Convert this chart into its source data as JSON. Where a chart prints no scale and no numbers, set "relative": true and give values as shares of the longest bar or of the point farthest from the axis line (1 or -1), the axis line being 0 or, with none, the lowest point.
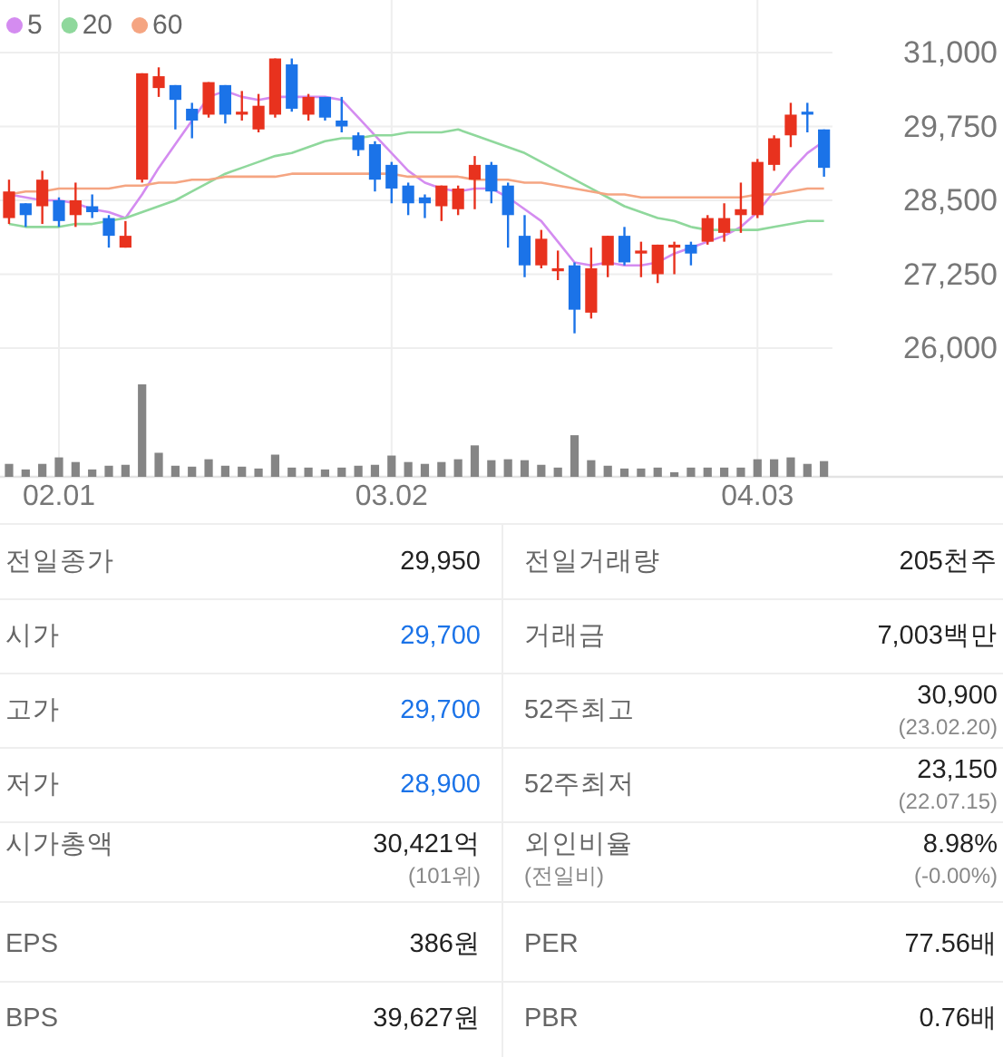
{
  "chart_data": [
    {
      "type": "candlestick",
      "categories": [
        null,
        null,
        null,
        "02.01",
        null,
        null,
        null,
        null,
        null,
        null,
        null,
        null,
        null,
        null,
        null,
        null,
        null,
        null,
        null,
        null,
        null,
        null,
        null,
        "03.02",
        null,
        null,
        null,
        null,
        null,
        null,
        null,
        null,
        null,
        null,
        null,
        null,
        null,
        null,
        null,
        null,
        null,
        null,
        null,
        null,
        null,
        "04.03",
        null,
        null,
        null,
        null
      ],
      "ohlc": [
        [
          28200,
          28850,
          28100,
          28650
        ],
        [
          28450,
          28450,
          28050,
          28250
        ],
        [
          28400,
          29000,
          28100,
          28850
        ],
        [
          28500,
          28550,
          28050,
          28150
        ],
        [
          28250,
          28800,
          28050,
          28500
        ],
        [
          28400,
          28600,
          28200,
          28300
        ],
        [
          28200,
          28250,
          27700,
          27900
        ],
        [
          27700,
          28150,
          27700,
          27900
        ],
        [
          28850,
          30650,
          28800,
          30650
        ],
        [
          30400,
          30750,
          30250,
          30600
        ],
        [
          30450,
          30450,
          29700,
          30200
        ],
        [
          30050,
          30150,
          29550,
          29850
        ],
        [
          29950,
          30500,
          29900,
          30500
        ],
        [
          30450,
          30450,
          29800,
          29950
        ],
        [
          29950,
          30350,
          29850,
          30000
        ],
        [
          29700,
          30300,
          29650,
          30100
        ],
        [
          29950,
          30900,
          29900,
          30900
        ],
        [
          30800,
          30900,
          30000,
          30050
        ],
        [
          29950,
          30300,
          29850,
          30250
        ],
        [
          30250,
          30250,
          29850,
          29900
        ],
        [
          29850,
          30250,
          29650,
          29750
        ],
        [
          29600,
          29650,
          29250,
          29350
        ],
        [
          29450,
          29500,
          28650,
          28850
        ],
        [
          29100,
          29150,
          28450,
          28700
        ],
        [
          28750,
          28800,
          28250,
          28450
        ],
        [
          28550,
          28600,
          28200,
          28450
        ],
        [
          28400,
          28750,
          28150,
          28750
        ],
        [
          28350,
          28750,
          28250,
          28700
        ],
        [
          28850,
          29250,
          28350,
          29100
        ],
        [
          29100,
          29150,
          28450,
          28650
        ],
        [
          28750,
          28800,
          27700,
          28250
        ],
        [
          27900,
          28250,
          27200,
          27400
        ],
        [
          27400,
          28000,
          27350,
          27850
        ],
        [
          27300,
          27650,
          27150,
          27350
        ],
        [
          27400,
          27450,
          26250,
          26650
        ],
        [
          26600,
          27700,
          26500,
          27350
        ],
        [
          27400,
          27900,
          27200,
          27900
        ],
        [
          27900,
          28050,
          27400,
          27450
        ],
        [
          27600,
          27800,
          27200,
          27650
        ],
        [
          27250,
          27750,
          27100,
          27750
        ],
        [
          27700,
          27800,
          27250,
          27750
        ],
        [
          27750,
          27800,
          27400,
          27600
        ],
        [
          27800,
          28250,
          27750,
          28200
        ],
        [
          27950,
          28450,
          27800,
          28200
        ],
        [
          28250,
          28800,
          27950,
          28350
        ],
        [
          28250,
          29200,
          28200,
          29150
        ],
        [
          29100,
          29600,
          29000,
          29550
        ],
        [
          29600,
          30150,
          29400,
          29950
        ],
        [
          30000,
          30150,
          29650,
          29950
        ],
        [
          29700,
          29700,
          28900,
          29050
        ]
      ],
      "colors": [
        "#e8321e",
        "#1b73e8",
        "#e8321e",
        "#1b73e8",
        "#e8321e",
        "#1b73e8",
        "#1b73e8",
        "#e8321e",
        "#e8321e",
        "#e8321e",
        "#1b73e8",
        "#1b73e8",
        "#e8321e",
        "#1b73e8",
        "#e8321e",
        "#e8321e",
        "#e8321e",
        "#1b73e8",
        "#e8321e",
        "#1b73e8",
        "#1b73e8",
        "#1b73e8",
        "#1b73e8",
        "#1b73e8",
        "#1b73e8",
        "#1b73e8",
        "#e8321e",
        "#e8321e",
        "#e8321e",
        "#1b73e8",
        "#1b73e8",
        "#1b73e8",
        "#e8321e",
        "#e8321e",
        "#1b73e8",
        "#e8321e",
        "#e8321e",
        "#1b73e8",
        "#e8321e",
        "#e8321e",
        "#e8321e",
        "#1b73e8",
        "#e8321e",
        "#e8321e",
        "#e8321e",
        "#e8321e",
        "#e8321e",
        "#e8321e",
        "#1b73e8",
        "#1b73e8"
      ],
      "series": [
        {
          "name": "5",
          "type": "line",
          "color": "#d48cf0",
          "values": [
            28600,
            28550,
            28500,
            28500,
            28450,
            28350,
            28300,
            28200,
            28600,
            29050,
            29450,
            29850,
            30250,
            30350,
            30250,
            30200,
            30250,
            30250,
            30250,
            30250,
            30200,
            29900,
            29600,
            29300,
            29000,
            28800,
            28700,
            28650,
            28700,
            28700,
            28550,
            28350,
            28150,
            27800,
            27450,
            27400,
            27450,
            27400,
            27400,
            27450,
            27600,
            27700,
            27800,
            27900,
            28050,
            28300,
            28650,
            29000,
            29300,
            29500
          ]
        },
        {
          "name": "20",
          "type": "line",
          "color": "#8fd89c",
          "values": [
            28100,
            28050,
            28050,
            28050,
            28100,
            28100,
            28150,
            28200,
            28300,
            28400,
            28500,
            28650,
            28800,
            28950,
            29050,
            29150,
            29250,
            29300,
            29400,
            29500,
            29550,
            29550,
            29600,
            29600,
            29650,
            29650,
            29650,
            29700,
            29600,
            29500,
            29400,
            29300,
            29150,
            29000,
            28850,
            28700,
            28550,
            28400,
            28300,
            28200,
            28150,
            28050,
            28000,
            28000,
            28000,
            28000,
            28050,
            28100,
            28150,
            28150
          ]
        },
        {
          "name": "60",
          "type": "line",
          "color": "#f5a582",
          "values": [
            28600,
            28650,
            28650,
            28700,
            28700,
            28700,
            28700,
            28750,
            28750,
            28800,
            28800,
            28850,
            28850,
            28900,
            28900,
            28900,
            28900,
            28950,
            28950,
            28950,
            28950,
            28950,
            28950,
            28950,
            28900,
            28900,
            28900,
            28900,
            28850,
            28850,
            28850,
            28800,
            28800,
            28750,
            28700,
            28650,
            28600,
            28600,
            28550,
            28550,
            28550,
            28550,
            28550,
            28550,
            28550,
            28600,
            28600,
            28650,
            28700,
            28700
          ]
        }
      ],
      "ylim": [
        26000,
        31000
      ],
      "yticks": [
        {
          "value": 26000,
          "label": "26,000"
        },
        {
          "value": 27250,
          "label": "27,250"
        },
        {
          "value": 28500,
          "label": "28,500"
        },
        {
          "value": 29750,
          "label": "29,750"
        },
        {
          "value": 31000,
          "label": "31,000"
        }
      ],
      "grid": true,
      "legend": "top left",
      "tick_labels": "y"
    },
    {
      "type": "bar",
      "categories": [
        null,
        null,
        null,
        "02.01",
        null,
        null,
        null,
        null,
        null,
        null,
        null,
        null,
        null,
        null,
        null,
        null,
        null,
        null,
        null,
        null,
        null,
        null,
        null,
        "03.02",
        null,
        null,
        null,
        null,
        null,
        null,
        null,
        null,
        null,
        null,
        null,
        null,
        null,
        null,
        null,
        null,
        null,
        null,
        null,
        null,
        null,
        "04.03",
        null,
        null,
        null,
        null
      ],
      "values": [
        0.14,
        0.08,
        0.14,
        0.21,
        0.16,
        0.08,
        0.12,
        0.13,
        1,
        0.26,
        0.12,
        0.11,
        0.19,
        0.12,
        0.11,
        0.09,
        0.24,
        0.1,
        0.1,
        0.08,
        0.1,
        0.12,
        0.13,
        0.23,
        0.16,
        0.14,
        0.16,
        0.19,
        0.34,
        0.18,
        0.19,
        0.18,
        0.13,
        0.1,
        0.45,
        0.18,
        0.12,
        0.09,
        0.09,
        0.1,
        0.05,
        0.1,
        0.1,
        0.1,
        0.1,
        0.19,
        0.19,
        0.21,
        0.14,
        0.17
      ],
      "color": "#858585",
      "relative": true,
      "grid": "x",
      "tick_labels": "x"
    },
    {
      "type": "other",
      "annotations": [
        "전일종가",
        "29,950",
        "전일거래량",
        "205천주",
        "시가",
        "29,700",
        "거래금",
        "7,003백만",
        "고가",
        "29,700",
        "52주최고",
        "30,900",
        "(23.02.20)",
        "저가",
        "28,900",
        "52주최저",
        "23,150",
        "(22.07.15)",
        "시가총액",
        "30,421억",
        "(101위)",
        "외인비율",
        "(전일비)",
        "8.98%",
        "(-0.00%)",
        "EPS",
        "386원",
        "PER",
        "77.56배",
        "BPS",
        "39,627원",
        "PBR",
        "0.76배"
      ]
    }
  ]
}
